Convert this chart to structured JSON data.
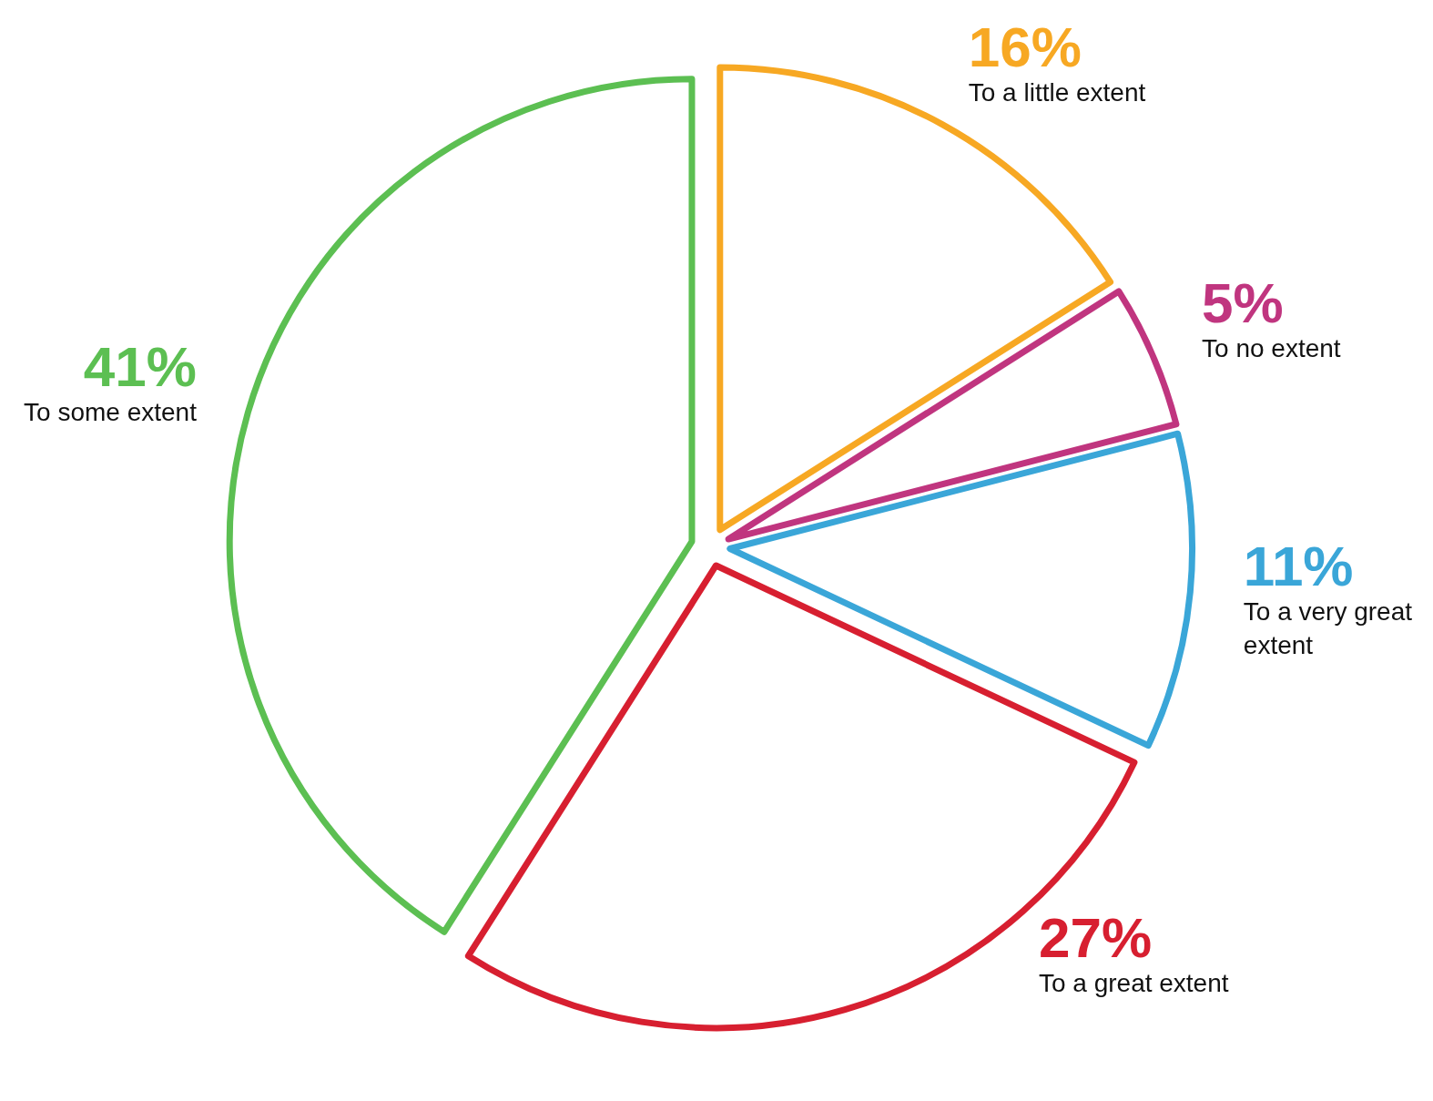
{
  "chart_data": {
    "type": "pie",
    "categories": [
      "To a little extent",
      "To no extent",
      "To a very great extent",
      "To a great extent",
      "To some extent"
    ],
    "values": [
      16,
      5,
      11,
      27,
      41
    ],
    "value_labels": [
      "16%",
      "5%",
      "11%",
      "27%",
      "41%"
    ],
    "colors": [
      "#f7a823",
      "#c0357f",
      "#3aa6d8",
      "#d71f30",
      "#5cbf52"
    ]
  }
}
